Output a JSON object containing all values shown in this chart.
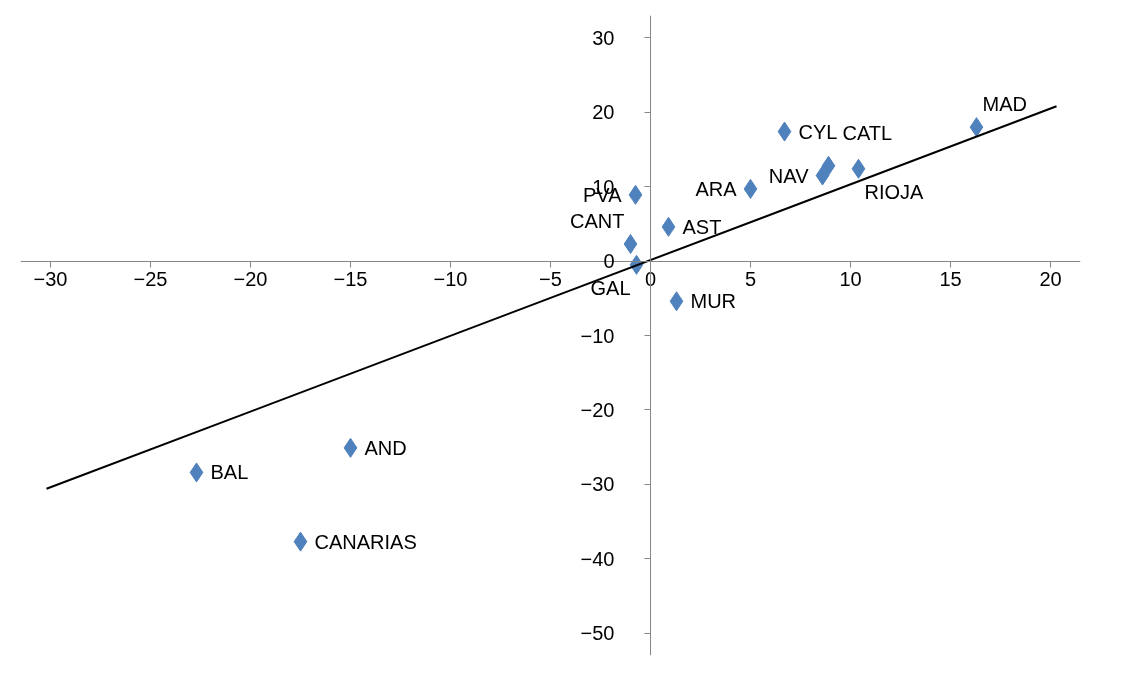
{
  "chart_data": {
    "type": "scatter",
    "marker": "diamond",
    "grid": false,
    "xlim": [
      -31.5,
      21.5
    ],
    "ylim": [
      -53,
      33
    ],
    "xticks": [
      -30,
      -25,
      -20,
      -15,
      -10,
      -5,
      0,
      5,
      10,
      15,
      20
    ],
    "yticks": [
      -50,
      -40,
      -30,
      -20,
      -10,
      0,
      10,
      20,
      30
    ],
    "series": [
      {
        "color": "#4f81bd",
        "x": [
          6.7,
          8.9,
          8.6,
          10.4,
          5.0,
          -0.75,
          0.9,
          -1.0,
          -0.7,
          1.3,
          16.3,
          -15.0,
          -22.7,
          -17.5
        ],
        "values": [
          17.4,
          12.8,
          11.5,
          12.4,
          9.7,
          8.9,
          4.6,
          2.3,
          -0.5,
          -5.4,
          18.0,
          -25.1,
          -28.4,
          -37.7
        ]
      },
      {
        "type": "line",
        "marker": "none",
        "color": "#000000",
        "x": [
          -30.2,
          20.3
        ],
        "values": [
          -30.6,
          20.8
        ]
      }
    ],
    "annotations": [
      {
        "text": "CYL",
        "x": 6.7,
        "y": 17.4
      },
      {
        "text": "CATL",
        "x": 8.9,
        "y": 12.8
      },
      {
        "text": "NAV",
        "x": 8.6,
        "y": 11.5
      },
      {
        "text": "RIOJA",
        "x": 10.4,
        "y": 12.4
      },
      {
        "text": "ARA",
        "x": 5.0,
        "y": 9.7
      },
      {
        "text": "PVA",
        "x": -0.75,
        "y": 8.9
      },
      {
        "text": "AST",
        "x": 0.9,
        "y": 4.6
      },
      {
        "text": "CANT",
        "x": -1.0,
        "y": 2.3
      },
      {
        "text": "GAL",
        "x": -0.7,
        "y": -0.5
      },
      {
        "text": "MUR",
        "x": 1.3,
        "y": -5.4
      },
      {
        "text": "MAD",
        "x": 16.3,
        "y": 18.0
      },
      {
        "text": "AND",
        "x": -15.0,
        "y": -25.1
      },
      {
        "text": "BAL",
        "x": -22.7,
        "y": -28.4
      },
      {
        "text": "CANARIAS",
        "x": -17.5,
        "y": -37.7
      }
    ]
  }
}
